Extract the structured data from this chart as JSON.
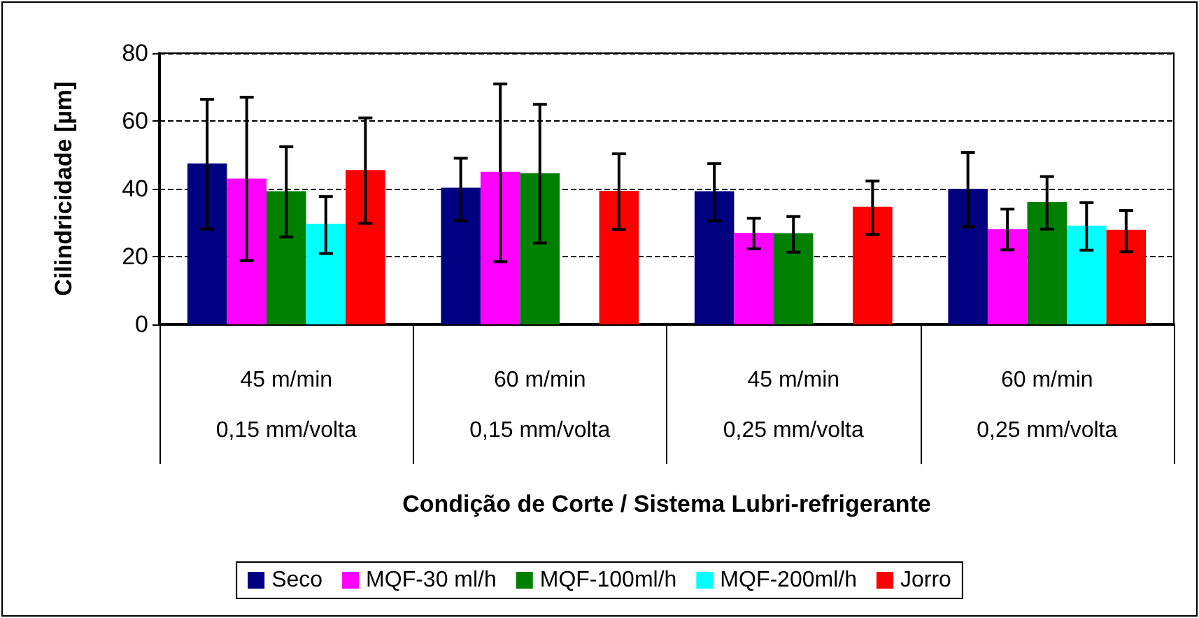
{
  "chart_data": {
    "type": "bar",
    "xlabel": "Condição de Corte / Sistema Lubri-refrigerante",
    "ylabel": "Cilindricidade [µm]",
    "categories": [
      "45 m/min\n0,15 mm/volta",
      "60 m/min\n0,15 mm/volta",
      "45 m/min\n0,25 mm/volta",
      "60 m/min\n0,25 mm/volta"
    ],
    "series": [
      {
        "name": "Seco",
        "color": "#000080",
        "values": [
          47.5,
          40.3,
          39.3,
          40.0
        ],
        "errors": [
          [
            28.1,
            66.4
          ],
          [
            30.6,
            49.0
          ],
          [
            30.6,
            47.4
          ],
          [
            28.8,
            50.7
          ]
        ]
      },
      {
        "name": "MQF-30 ml/h",
        "color": "#ff00ff",
        "values": [
          43.0,
          45.0,
          27.0,
          28.1
        ],
        "errors": [
          [
            18.8,
            67.0
          ],
          [
            18.5,
            70.9
          ],
          [
            22.3,
            31.3
          ],
          [
            22.0,
            34.0
          ]
        ]
      },
      {
        "name": "MQF-100ml/h",
        "color": "#008000",
        "values": [
          39.3,
          44.6,
          26.9,
          36.1
        ],
        "errors": [
          [
            25.8,
            52.4
          ],
          [
            24.0,
            64.9
          ],
          [
            21.3,
            31.8
          ],
          [
            28.1,
            43.6
          ]
        ]
      },
      {
        "name": "MQF-200ml/h",
        "color": "#00ffff",
        "values": [
          29.7,
          null,
          null,
          29.1
        ],
        "errors": [
          [
            20.9,
            37.7
          ],
          null,
          null,
          [
            21.9,
            35.9
          ]
        ]
      },
      {
        "name": "Jorro",
        "color": "#ff0000",
        "values": [
          45.5,
          39.4,
          34.7,
          27.9
        ],
        "errors": [
          [
            29.8,
            60.9
          ],
          [
            28.0,
            50.3
          ],
          [
            26.5,
            42.3
          ],
          [
            21.4,
            33.6
          ]
        ]
      }
    ],
    "ylim": [
      0,
      80
    ],
    "yticks": [
      0,
      20,
      40,
      60,
      80
    ],
    "grid": "y",
    "line_style": "dashed",
    "legend": "bottom"
  }
}
